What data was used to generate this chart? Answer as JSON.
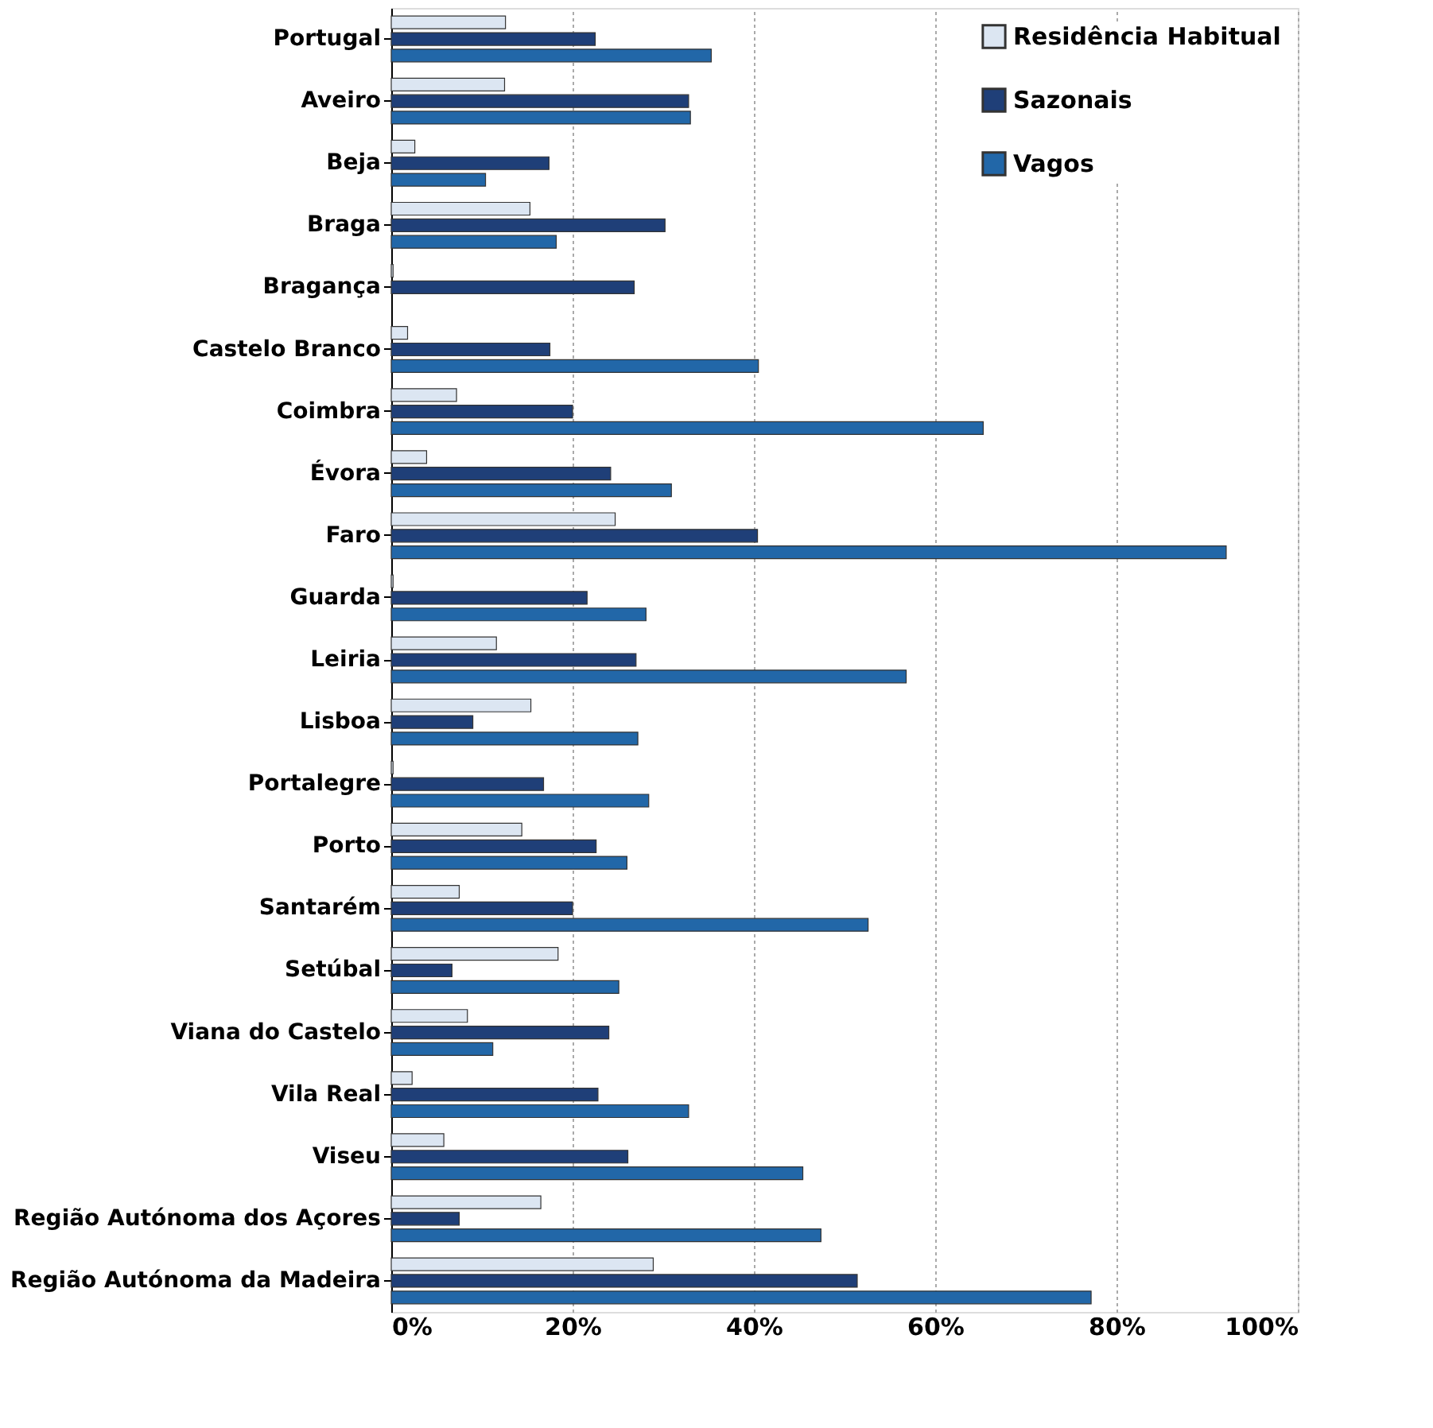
{
  "chart_data": {
    "type": "bar",
    "orientation": "horizontal",
    "categories": [
      "Portugal",
      "Aveiro",
      "Beja",
      "Braga",
      "Bragança",
      "Castelo Branco",
      "Coimbra",
      "Évora",
      "Faro",
      "Guarda",
      "Leiria",
      "Lisboa",
      "Portalegre",
      "Porto",
      "Santarém",
      "Setúbal",
      "Viana do Castelo",
      "Vila Real",
      "Viseu",
      "Região Autónoma dos Açores",
      "Região Autónoma da Madeira"
    ],
    "series": [
      {
        "name": "Residência Habitual",
        "color": "#dce6f2",
        "values": [
          12.6,
          12.5,
          2.6,
          15.3,
          0.2,
          1.8,
          7.2,
          3.9,
          24.7,
          0.2,
          11.6,
          15.4,
          0.2,
          14.4,
          7.5,
          18.4,
          8.4,
          2.3,
          5.8,
          16.5,
          28.9
        ]
      },
      {
        "name": "Sazonais",
        "color": "#1f3f78",
        "values": [
          22.5,
          32.8,
          17.4,
          30.2,
          26.8,
          17.5,
          20,
          24.2,
          40.4,
          21.6,
          27,
          9,
          16.8,
          22.6,
          20,
          6.7,
          24,
          22.8,
          26.1,
          7.5,
          51.4
        ]
      },
      {
        "name": "Vagos",
        "color": "#2267a8",
        "values": [
          35.3,
          33,
          10.4,
          18.2,
          null,
          40.5,
          65.3,
          30.9,
          92.1,
          28.1,
          56.8,
          27.2,
          28.4,
          26,
          52.6,
          25.1,
          11.2,
          32.8,
          45.4,
          47.4,
          77.2
        ]
      }
    ],
    "xlim": [
      0,
      100
    ],
    "xticks": [
      {
        "value": 0,
        "label": "0%"
      },
      {
        "value": 20,
        "label": "20%"
      },
      {
        "value": 40,
        "label": "40%"
      },
      {
        "value": 60,
        "label": "60%"
      },
      {
        "value": 80,
        "label": "80%"
      },
      {
        "value": 100,
        "label": "100%"
      }
    ],
    "grid": "x",
    "legend": "top right"
  }
}
